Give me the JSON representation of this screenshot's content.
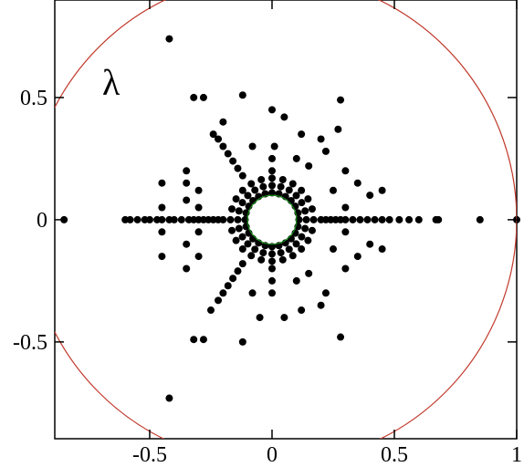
{
  "chart_data": {
    "type": "scatter",
    "annotation": "λ",
    "color": "#000000",
    "xlim": [
      -0.888,
      1.0
    ],
    "ylim": [
      -0.896,
      0.899
    ],
    "xticks": [
      -0.5,
      0,
      0.5,
      1
    ],
    "yticks": [
      -0.5,
      0,
      0.5
    ],
    "reference_circles": [
      {
        "radius": 1,
        "color": "#c0392b"
      },
      {
        "radius": 0.1,
        "color": "#1a8a1a"
      }
    ],
    "x": [
      0.11,
      0.106,
      0.095,
      0.078,
      0.055,
      0.028,
      0,
      -0.028,
      -0.055,
      -0.078,
      -0.095,
      -0.106,
      -0.11,
      -0.106,
      -0.095,
      -0.078,
      -0.055,
      -0.028,
      0,
      0.028,
      0.055,
      0.078,
      0.095,
      0.106,
      0.14,
      0.135,
      0.121,
      0.099,
      0.07,
      0.036,
      0,
      -0.036,
      -0.07,
      -0.099,
      -0.121,
      -0.135,
      -0.14,
      -0.135,
      -0.121,
      -0.099,
      -0.07,
      -0.036,
      0,
      0.036,
      0.07,
      0.099,
      0.121,
      0.135,
      0.17,
      0.164,
      0.147,
      0.12,
      0.085,
      0.044,
      0,
      -0.044,
      -0.085,
      -0.12,
      -0.147,
      -0.164,
      -0.17,
      -0.164,
      -0.147,
      -0.12,
      -0.085,
      -0.044,
      0,
      0.044,
      0.085,
      0.12,
      0.147,
      0.164,
      -0.85,
      -0.6,
      -0.58,
      -0.55,
      -0.52,
      -0.5,
      -0.47,
      -0.45,
      -0.42,
      -0.4,
      -0.37,
      -0.34,
      -0.32,
      -0.3,
      -0.28,
      -0.26,
      -0.24,
      -0.22,
      -0.2,
      0.2,
      0.22,
      0.24,
      0.26,
      0.28,
      0.3,
      0.33,
      0.36,
      0.39,
      0.42,
      0.45,
      0.48,
      0.52,
      0.56,
      0.6,
      0.67,
      0.68,
      0.85,
      1.0,
      -0.12,
      -0.14,
      -0.16,
      -0.18,
      -0.2,
      -0.22,
      -0.24,
      -0.12,
      -0.14,
      -0.16,
      -0.18,
      -0.2,
      -0.22,
      -0.25,
      0,
      0,
      0.01,
      0,
      0,
      0,
      0,
      -0.42,
      -0.42,
      -0.32,
      -0.28,
      -0.12,
      0.28,
      -0.32,
      -0.28,
      -0.12,
      0.28,
      -0.2,
      0.05,
      0.12,
      0.2,
      0.22,
      0.3,
      0.35,
      0.4,
      0.45,
      0.27,
      -0.35,
      -0.35,
      -0.35,
      -0.3,
      -0.45,
      -0.45,
      -0.45,
      -0.45,
      -0.35,
      -0.35,
      -0.3,
      0.3,
      0.35,
      0.4,
      0.45,
      0.22,
      0.2,
      0.12,
      0.05,
      -0.05,
      0.1,
      0.15,
      0.1,
      0.15,
      -0.08,
      -0.08,
      0.25,
      0.25,
      0.3,
      0.3,
      -0.3,
      -0.3
    ],
    "y": [
      0,
      0.028,
      0.055,
      0.078,
      0.095,
      0.106,
      0.11,
      0.106,
      0.095,
      0.078,
      0.055,
      0.028,
      0,
      -0.028,
      -0.055,
      -0.078,
      -0.095,
      -0.106,
      -0.11,
      -0.106,
      -0.095,
      -0.078,
      -0.055,
      -0.028,
      0,
      0.036,
      0.07,
      0.099,
      0.121,
      0.135,
      0.14,
      0.135,
      0.121,
      0.099,
      0.07,
      0.036,
      0,
      -0.036,
      -0.07,
      -0.099,
      -0.121,
      -0.135,
      -0.14,
      -0.135,
      -0.121,
      -0.099,
      -0.07,
      -0.036,
      0,
      0.044,
      0.085,
      0.12,
      0.147,
      0.164,
      0.17,
      0.164,
      0.147,
      0.12,
      0.085,
      0.044,
      0,
      -0.044,
      -0.085,
      -0.12,
      -0.147,
      -0.164,
      -0.17,
      -0.164,
      -0.147,
      -0.12,
      -0.085,
      -0.044,
      0,
      0,
      0,
      0,
      0,
      0,
      0,
      0,
      0,
      0,
      0,
      0,
      0,
      0,
      0,
      0,
      0,
      0,
      0,
      0,
      0,
      0,
      0,
      0,
      0,
      0,
      0,
      0,
      0,
      0,
      0,
      0,
      0,
      0,
      0,
      0,
      0,
      0,
      0.18,
      0.21,
      0.24,
      0.27,
      0.3,
      0.33,
      0.35,
      -0.18,
      -0.21,
      -0.24,
      -0.27,
      -0.3,
      -0.33,
      -0.37,
      0.2,
      0.25,
      0.3,
      0.45,
      -0.2,
      -0.25,
      -0.3,
      0.74,
      -0.73,
      0.5,
      0.5,
      0.51,
      0.49,
      -0.49,
      -0.49,
      -0.5,
      -0.48,
      0.4,
      0.42,
      0.35,
      0.33,
      0.28,
      0.2,
      0.15,
      0.1,
      0.12,
      0.37,
      0.2,
      0.15,
      0.08,
      0.12,
      0.15,
      0.05,
      -0.05,
      -0.15,
      -0.1,
      -0.2,
      -0.15,
      -0.2,
      -0.15,
      -0.1,
      -0.12,
      -0.3,
      -0.35,
      -0.37,
      -0.4,
      -0.4,
      0.25,
      0.22,
      -0.25,
      -0.22,
      0.3,
      -0.3,
      0.12,
      -0.12,
      0.05,
      -0.05,
      0.05,
      -0.05
    ]
  }
}
